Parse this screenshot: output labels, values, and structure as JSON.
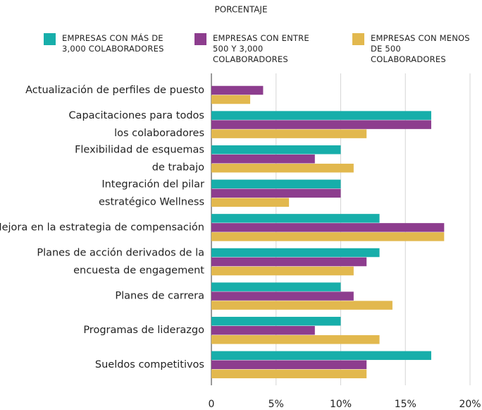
{
  "chart_data": {
    "type": "bar",
    "orientation": "horizontal",
    "title": "PORCENTAJE",
    "categories": [
      [
        "Actualización de perfiles de puesto"
      ],
      [
        "Capacitaciones para todos",
        "los colaboradores"
      ],
      [
        "Flexibilidad de esquemas",
        "de trabajo"
      ],
      [
        "Integración del pilar",
        "estratégico Wellness"
      ],
      [
        "Mejora en la estrategia de compensación"
      ],
      [
        "Planes de acción derivados de la",
        "encuesta de engagement"
      ],
      [
        "Planes de carrera"
      ],
      [
        "Programas de liderazgo"
      ],
      [
        "Sueldos competitivos"
      ]
    ],
    "series": [
      {
        "name": "EMPRESAS CON MÁS DE 3,000 COLABORADORES",
        "color": "#17aeaa",
        "values": [
          null,
          17,
          10,
          10,
          13,
          13,
          10,
          10,
          17
        ]
      },
      {
        "name": "EMPRESAS CON ENTRE 500 Y 3,000 COLABORADORES",
        "color": "#8d3d8e",
        "values": [
          4,
          17,
          8,
          10,
          18,
          12,
          11,
          8,
          12
        ]
      },
      {
        "name": "EMPRESAS CON MENOS DE 500 COLABORADORES",
        "color": "#e2b84e",
        "values": [
          3,
          12,
          11,
          6,
          18,
          11,
          14,
          13,
          12
        ]
      }
    ],
    "xlim": [
      0,
      20
    ],
    "xticks": [
      0,
      {
        "value": 5,
        "label": "5%"
      },
      {
        "value": 10,
        "label": "10%"
      },
      {
        "value": 15,
        "label": "15%"
      },
      {
        "value": 20,
        "label": "20%"
      }
    ],
    "grid": true
  }
}
